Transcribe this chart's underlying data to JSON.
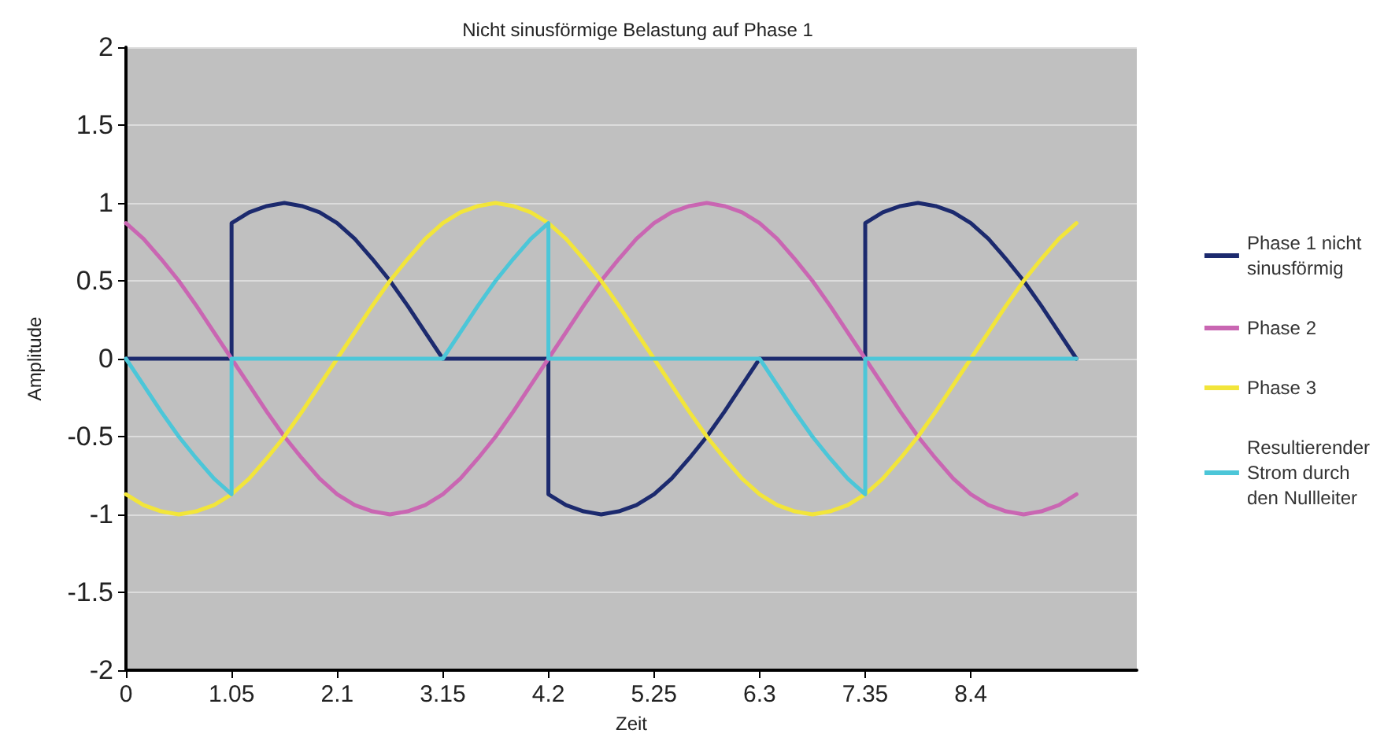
{
  "chart_data": {
    "type": "line",
    "title": "Nicht sinusförmige Belastung auf Phase 1",
    "xlabel": "Zeit",
    "ylabel": "Amplitude",
    "x": [
      0,
      0.175,
      0.35,
      0.525,
      0.7,
      0.875,
      1.05,
      1.225,
      1.4,
      1.575,
      1.75,
      1.925,
      2.1,
      2.275,
      2.45,
      2.625,
      2.8,
      2.975,
      3.15,
      3.325,
      3.5,
      3.675,
      3.85,
      4.025,
      4.2,
      4.375,
      4.55,
      4.725,
      4.9,
      5.075,
      5.25,
      5.425,
      5.6,
      5.775,
      5.95,
      6.125,
      6.3,
      6.475,
      6.65,
      6.825,
      7.0,
      7.175,
      7.35,
      7.525,
      7.7,
      7.875,
      8.05,
      8.225,
      8.4,
      8.575,
      8.75,
      8.925,
      9.1,
      9.275,
      9.45
    ],
    "series": [
      {
        "name": "Phase 1 nicht sinusförmig",
        "color": "#1c2a6e",
        "x": [
          0,
          1.05,
          1.05,
          1.225,
          1.4,
          1.575,
          1.75,
          1.925,
          2.1,
          2.275,
          2.45,
          2.625,
          2.8,
          2.975,
          3.15,
          4.2,
          4.2,
          4.375,
          4.55,
          4.725,
          4.9,
          5.075,
          5.25,
          5.425,
          5.6,
          5.775,
          5.95,
          6.125,
          6.3,
          7.35,
          7.35,
          7.525,
          7.7,
          7.875,
          8.05,
          8.225,
          8.4,
          8.575,
          8.75,
          8.925,
          9.1,
          9.275,
          9.45
        ],
        "values": [
          0,
          0,
          0.87,
          0.94,
          0.98,
          1,
          0.98,
          0.94,
          0.87,
          0.77,
          0.64,
          0.5,
          0.34,
          0.17,
          0,
          0,
          -0.87,
          -0.94,
          -0.98,
          -1,
          -0.98,
          -0.94,
          -0.87,
          -0.77,
          -0.64,
          -0.5,
          -0.34,
          -0.17,
          0,
          0,
          0.87,
          0.94,
          0.98,
          1,
          0.98,
          0.94,
          0.87,
          0.77,
          0.64,
          0.5,
          0.34,
          0.17,
          0
        ]
      },
      {
        "name": "Phase 2",
        "color": "#c966b2",
        "values": [
          0.87,
          0.77,
          0.64,
          0.5,
          0.34,
          0.17,
          0,
          -0.17,
          -0.34,
          -0.5,
          -0.64,
          -0.77,
          -0.87,
          -0.94,
          -0.98,
          -1,
          -0.98,
          -0.94,
          -0.87,
          -0.77,
          -0.64,
          -0.5,
          -0.34,
          -0.17,
          0,
          0.17,
          0.34,
          0.5,
          0.64,
          0.77,
          0.87,
          0.94,
          0.98,
          1,
          0.98,
          0.94,
          0.87,
          0.77,
          0.64,
          0.5,
          0.34,
          0.17,
          0,
          -0.17,
          -0.34,
          -0.5,
          -0.64,
          -0.77,
          -0.87,
          -0.94,
          -0.98,
          -1,
          -0.98,
          -0.94,
          -0.87
        ]
      },
      {
        "name": "Phase 3",
        "color": "#f2e53a",
        "values": [
          -0.87,
          -0.94,
          -0.98,
          -1,
          -0.98,
          -0.94,
          -0.87,
          -0.77,
          -0.64,
          -0.5,
          -0.34,
          -0.17,
          0,
          0.17,
          0.34,
          0.5,
          0.64,
          0.77,
          0.87,
          0.94,
          0.98,
          1,
          0.98,
          0.94,
          0.87,
          0.77,
          0.64,
          0.5,
          0.34,
          0.17,
          0,
          -0.17,
          -0.34,
          -0.5,
          -0.64,
          -0.77,
          -0.87,
          -0.94,
          -0.98,
          -1,
          -0.98,
          -0.94,
          -0.87,
          -0.77,
          -0.64,
          -0.5,
          -0.34,
          -0.17,
          0,
          0.17,
          0.34,
          0.5,
          0.64,
          0.77,
          0.87
        ]
      },
      {
        "name": "Resultierender Strom durch den Nullleiter",
        "color": "#4cc6d8",
        "x": [
          0,
          0.175,
          0.35,
          0.525,
          0.7,
          0.875,
          1.05,
          1.05,
          3.15,
          3.325,
          3.5,
          3.675,
          3.85,
          4.025,
          4.2,
          4.2,
          6.3,
          6.475,
          6.65,
          6.825,
          7.0,
          7.175,
          7.35,
          7.35,
          9.45
        ],
        "values": [
          0,
          -0.17,
          -0.34,
          -0.5,
          -0.64,
          -0.77,
          -0.87,
          0,
          0,
          0.17,
          0.34,
          0.5,
          0.64,
          0.77,
          0.87,
          0,
          0,
          -0.17,
          -0.34,
          -0.5,
          -0.64,
          -0.77,
          -0.87,
          0,
          0
        ]
      }
    ],
    "xlim": [
      0,
      10.05
    ],
    "xticks": [
      0,
      1.05,
      2.1,
      3.15,
      4.2,
      5.25,
      6.3,
      7.35,
      8.4
    ],
    "ylim": [
      -2,
      2
    ],
    "yticks": [
      -2,
      -1.5,
      -1,
      -0.5,
      0,
      0.5,
      1,
      1.5,
      2
    ],
    "grid": "y",
    "legend": "right",
    "marker": "none",
    "line_style": "solid"
  }
}
